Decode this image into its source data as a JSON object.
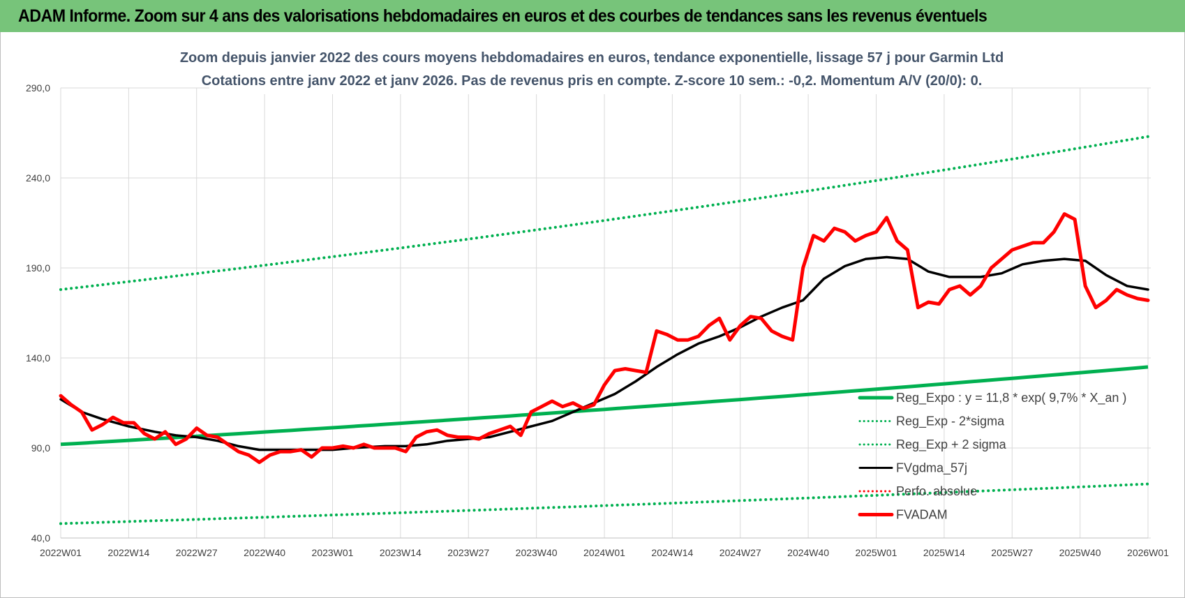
{
  "banner": {
    "title": "ADAM Informe. Zoom sur 4 ans des valorisations hebdomadaires en euros et des courbes de tendances sans les revenus éventuels"
  },
  "colors": {
    "banner": "#77c47a",
    "trend": "#00b050",
    "fvgdma": "#000000",
    "fvadam": "#ff0000",
    "grid": "#d9d9d9"
  },
  "chart_data": {
    "type": "line",
    "title": "Zoom depuis janvier 2022 des cours moyens hebdomadaires en euros, tendance exponentielle, lissage 57 j pour Garmin Ltd",
    "subtitle": "Cotations entre janv 2022 et janv 2026. Pas de revenus pris en compte. Z-score 10 sem.: -0,2. Momentum A/V (20/0): 0.",
    "xlabel": "",
    "ylabel": "",
    "ylim": [
      40,
      290
    ],
    "yticks": [
      "40,0",
      "90,0",
      "140,0",
      "190,0",
      "240,0",
      "290,0"
    ],
    "x_ticks": [
      "2022W01",
      "2022W14",
      "2022W27",
      "2022W40",
      "2023W01",
      "2023W14",
      "2023W27",
      "2023W40",
      "2024W01",
      "2024W14",
      "2024W27",
      "2024W40",
      "2025W01",
      "2025W14",
      "2025W27",
      "2025W40",
      "2026W01"
    ],
    "x_week_range": [
      0,
      208
    ],
    "grid": true,
    "legend_position": "bottom-right",
    "legend": [
      {
        "label": "Reg_Expo : y = 11,8 * exp( 9,7% *  X_an )",
        "style": "solid-thick",
        "color": "#00b050"
      },
      {
        "label": "Reg_Exp - 2*sigma",
        "style": "dotted",
        "color": "#00b050"
      },
      {
        "label": "Reg_Exp + 2 sigma",
        "style": "dotted",
        "color": "#00b050"
      },
      {
        "label": "FVgdma_57j",
        "style": "solid",
        "color": "#000000"
      },
      {
        "label": "Perfo. absolue",
        "style": "dotted",
        "color": "#ff0000"
      },
      {
        "label": "FVADAM",
        "style": "solid-thick",
        "color": "#ff0000"
      }
    ],
    "series": [
      {
        "name": "Reg_Expo : y = 11,8 * exp( 9,7% *  X_an )",
        "x": [
          0,
          208
        ],
        "y": [
          92,
          135
        ],
        "interp": "exponential"
      },
      {
        "name": "Reg_Exp - 2*sigma",
        "x": [
          0,
          208
        ],
        "y": [
          48,
          70
        ],
        "interp": "exponential"
      },
      {
        "name": "Reg_Exp + 2 sigma",
        "x": [
          0,
          208
        ],
        "y": [
          178,
          263
        ],
        "interp": "exponential"
      },
      {
        "name": "FVgdma_57j",
        "x": [
          0,
          4,
          8,
          13,
          18,
          22,
          26,
          30,
          34,
          38,
          42,
          48,
          52,
          56,
          62,
          66,
          70,
          74,
          78,
          82,
          86,
          90,
          94,
          98,
          102,
          106,
          110,
          114,
          118,
          122,
          126,
          130,
          134,
          138,
          142,
          146,
          150,
          154,
          158,
          162,
          166,
          170,
          174,
          176,
          180,
          184,
          188,
          192,
          196,
          200,
          204,
          208
        ],
        "y": [
          117,
          110,
          106,
          102,
          99,
          97,
          96,
          94,
          91,
          89,
          89,
          89,
          89,
          90,
          91,
          91,
          92,
          94,
          95,
          96,
          99,
          102,
          105,
          110,
          115,
          120,
          127,
          135,
          142,
          148,
          152,
          157,
          163,
          168,
          172,
          184,
          191,
          195,
          196,
          195,
          188,
          185,
          185,
          185,
          187,
          192,
          194,
          195,
          194,
          186,
          180,
          178
        ]
      },
      {
        "name": "FVADAM",
        "x": [
          0,
          2,
          4,
          6,
          8,
          10,
          12,
          14,
          16,
          18,
          20,
          22,
          24,
          26,
          28,
          30,
          32,
          34,
          36,
          38,
          40,
          42,
          44,
          46,
          48,
          50,
          52,
          54,
          56,
          58,
          60,
          62,
          64,
          66,
          68,
          70,
          72,
          74,
          76,
          78,
          80,
          82,
          84,
          86,
          88,
          90,
          92,
          94,
          96,
          98,
          100,
          102,
          104,
          106,
          108,
          110,
          112,
          114,
          116,
          118,
          120,
          122,
          124,
          126,
          128,
          130,
          132,
          134,
          136,
          138,
          140,
          142,
          144,
          146,
          148,
          150,
          152,
          154,
          156,
          158,
          160,
          162,
          164,
          166,
          168,
          170,
          172,
          174,
          176,
          178,
          180,
          182,
          184,
          186,
          188,
          190,
          192,
          194,
          196,
          198,
          200,
          202,
          204,
          206,
          208
        ],
        "y": [
          119,
          114,
          110,
          100,
          103,
          107,
          104,
          104,
          98,
          95,
          99,
          92,
          95,
          101,
          97,
          96,
          92,
          88,
          86,
          82,
          86,
          88,
          88,
          89,
          85,
          90,
          90,
          91,
          90,
          92,
          90,
          90,
          90,
          88,
          96,
          99,
          100,
          97,
          96,
          96,
          95,
          98,
          100,
          102,
          97,
          110,
          113,
          116,
          113,
          115,
          112,
          114,
          125,
          133,
          134,
          133,
          132,
          155,
          153,
          150,
          150,
          152,
          158,
          162,
          150,
          158,
          163,
          162,
          155,
          152,
          150,
          190,
          208,
          205,
          212,
          210,
          205,
          208,
          210,
          218,
          205,
          200,
          168,
          171,
          170,
          178,
          180,
          175,
          180,
          190,
          195,
          200,
          202,
          204,
          204,
          210,
          220,
          217,
          180,
          168,
          172,
          178,
          175,
          173,
          172
        ]
      }
    ]
  }
}
